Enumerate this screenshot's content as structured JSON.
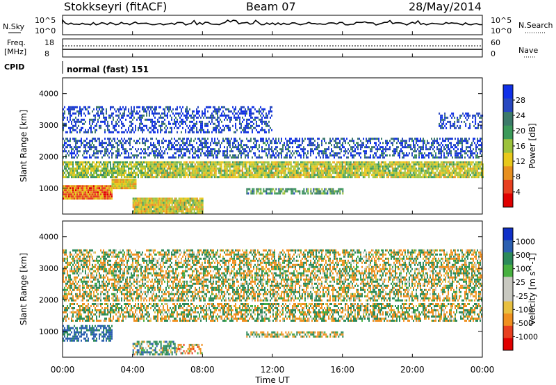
{
  "header": {
    "station": "Stokkseyri (fitACF)",
    "beam": "Beam 07",
    "date": "28/May/2014"
  },
  "noise_panel": {
    "left_label": "N.Sky",
    "right_label": "N.Search",
    "left_ticks": [
      "10^5",
      "10^0"
    ],
    "right_ticks": [
      "10^5",
      "10^0"
    ]
  },
  "freq_panel": {
    "left_label_1": "Freq.",
    "left_label_2": "[MHz]",
    "right_label": "Nave",
    "left_ticks": [
      "18",
      "8"
    ],
    "right_ticks": [
      "60",
      "0"
    ]
  },
  "cpid": {
    "label": "CPID",
    "value": "normal (fast) 151"
  },
  "x_axis": {
    "label": "Time UT",
    "ticks": [
      "00:00",
      "04:00",
      "08:00",
      "12:00",
      "16:00",
      "20:00",
      "00:00"
    ]
  },
  "colors": {
    "power": [
      "#1030e8",
      "#2848c0",
      "#3c7a6a",
      "#3c9a5a",
      "#9cc23c",
      "#e8c81c",
      "#e89020",
      "#e84020",
      "#e00000"
    ],
    "velocity": [
      "#e00000",
      "#e84020",
      "#f09020",
      "#e8c040",
      "#c8c8c0",
      "#c8c8c0",
      "#48b040",
      "#2c8a5a",
      "#2c60b0",
      "#1030c8"
    ]
  },
  "chart_data": [
    {
      "type": "heatmap",
      "title": "",
      "xlabel": "Time UT",
      "ylabel": "Slant Range [km]",
      "ylim": [
        180,
        4500
      ],
      "yticks": [
        1000,
        2000,
        3000,
        4000
      ],
      "xlim_hours": [
        0,
        24
      ],
      "colorbar": {
        "label": "Power [dB]",
        "ticks": [
          "4",
          "8",
          "12",
          "16",
          "20",
          "24",
          "28"
        ],
        "range": [
          0,
          30
        ]
      },
      "regions": [
        {
          "t": [
            0.0,
            2.8
          ],
          "r": [
            700,
            1100
          ],
          "level": 0.85
        },
        {
          "t": [
            2.8,
            4.2
          ],
          "r": [
            1000,
            1300
          ],
          "level": 0.7
        },
        {
          "t": [
            0.0,
            5.0
          ],
          "r": [
            1350,
            1850
          ],
          "level": 0.55
        },
        {
          "t": [
            5.0,
            24.0
          ],
          "r": [
            1350,
            1850
          ],
          "level": 0.6
        },
        {
          "t": [
            4.0,
            8.0
          ],
          "r": [
            200,
            700
          ],
          "level": 0.65
        },
        {
          "t": [
            10.5,
            16.0
          ],
          "r": [
            850,
            1000
          ],
          "level": 0.4
        },
        {
          "t": [
            0.0,
            24.0
          ],
          "r": [
            2000,
            2600
          ],
          "level": 0.2
        },
        {
          "t": [
            0.0,
            12.0
          ],
          "r": [
            2800,
            3600
          ],
          "level": 0.15
        },
        {
          "t": [
            21.5,
            24.0
          ],
          "r": [
            2900,
            3400
          ],
          "level": 0.15
        }
      ]
    },
    {
      "type": "heatmap",
      "title": "",
      "xlabel": "Time UT",
      "ylabel": "Slant Range [km]",
      "ylim": [
        180,
        4500
      ],
      "yticks": [
        1000,
        2000,
        3000,
        4000
      ],
      "xlim_hours": [
        0,
        24
      ],
      "colorbar": {
        "label": "Velocity [m s^-1]",
        "ticks": [
          "1000",
          "500",
          "100",
          "25",
          "-25",
          "-100",
          "-500",
          "-1000"
        ],
        "range": [
          -1200,
          1200
        ]
      },
      "regions": [
        {
          "t": [
            0.0,
            2.8
          ],
          "r": [
            700,
            1200
          ],
          "velocity": 400
        },
        {
          "t": [
            0.0,
            24.0
          ],
          "r": [
            1350,
            1900
          ],
          "velocity": 0
        },
        {
          "t": [
            4.0,
            6.5
          ],
          "r": [
            250,
            700
          ],
          "velocity": 150
        },
        {
          "t": [
            6.5,
            8.0
          ],
          "r": [
            300,
            600
          ],
          "velocity": -150
        },
        {
          "t": [
            10.5,
            16.0
          ],
          "r": [
            850,
            1000
          ],
          "velocity": 0
        },
        {
          "t": [
            0.0,
            24.0
          ],
          "r": [
            2000,
            3600
          ],
          "velocity": 0
        }
      ]
    }
  ]
}
